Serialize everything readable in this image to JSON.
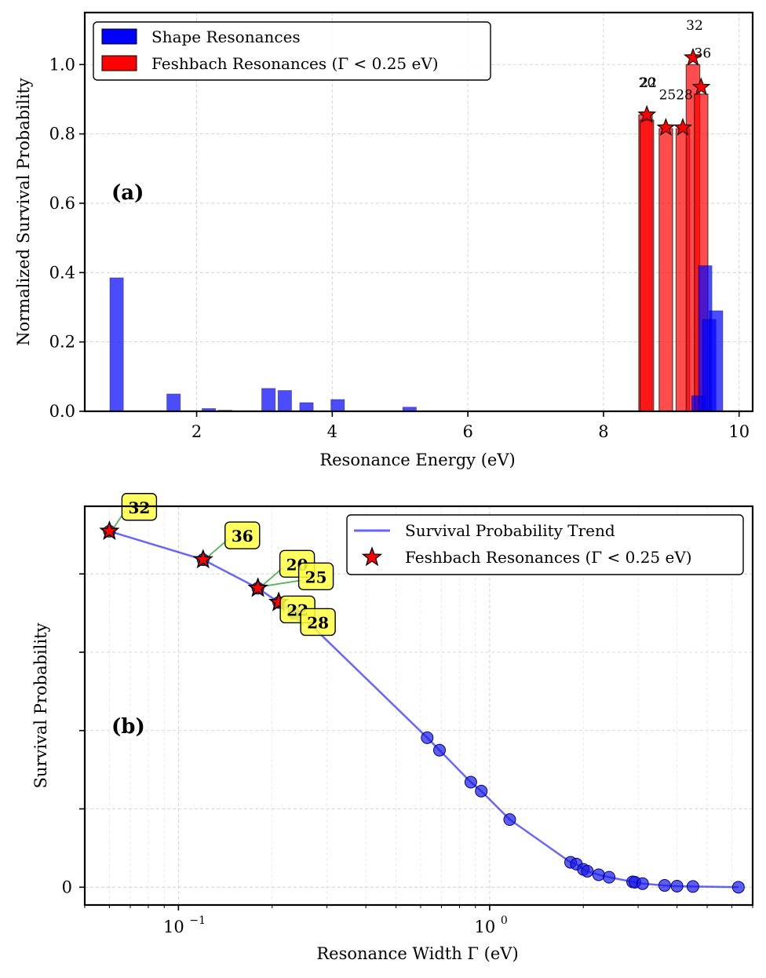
{
  "chart_data": [
    {
      "type": "bar",
      "panel_label": "(a)",
      "xlabel": "Resonance Energy (eV)",
      "ylabel": "Normalized Survival Probability",
      "xlim": [
        0.35,
        10.2
      ],
      "ylim": [
        0,
        1.15
      ],
      "xticks": [
        2,
        4,
        6,
        8,
        10
      ],
      "yticks": [
        0.0,
        0.2,
        0.4,
        0.6,
        0.8,
        1.0
      ],
      "xtick_labels": [
        "2",
        "4",
        "6",
        "8",
        "10"
      ],
      "ytick_labels": [
        "0.0",
        "0.2",
        "0.4",
        "0.6",
        "0.8",
        "1.0"
      ],
      "grid": true,
      "legend_position": "top-left",
      "legend": [
        "Shape Resonances",
        "Feshbach Resonances (Γ < 0.25 eV)"
      ],
      "colors": {
        "shape": "#0000ff",
        "feshbach": "#ff0000",
        "star": "#ff0000"
      },
      "bar_width": 0.2,
      "shape_bars": [
        {
          "x": 0.82,
          "value": 0.385
        },
        {
          "x": 1.66,
          "value": 0.05
        },
        {
          "x": 2.18,
          "value": 0.008
        },
        {
          "x": 2.42,
          "value": 0.003
        },
        {
          "x": 3.06,
          "value": 0.066
        },
        {
          "x": 3.3,
          "value": 0.06
        },
        {
          "x": 3.62,
          "value": 0.025
        },
        {
          "x": 4.08,
          "value": 0.034
        },
        {
          "x": 5.14,
          "value": 0.012
        },
        {
          "x": 9.4,
          "value": 0.045
        },
        {
          "x": 9.5,
          "value": 0.42
        },
        {
          "x": 9.56,
          "value": 0.265
        },
        {
          "x": 9.66,
          "value": 0.29
        }
      ],
      "feshbach_bars": [
        {
          "x": 8.62,
          "value": 0.855,
          "id": "20",
          "label_y": 0.935
        },
        {
          "x": 8.64,
          "value": 0.84,
          "id": "22",
          "label_y": 0.935
        },
        {
          "x": 8.92,
          "value": 0.815,
          "id": "25",
          "label_y": 0.9
        },
        {
          "x": 9.17,
          "value": 0.815,
          "id": "28",
          "label_y": 0.9
        },
        {
          "x": 9.32,
          "value": 1.0,
          "id": "32",
          "label_y": 1.1
        },
        {
          "x": 9.44,
          "value": 0.915,
          "id": "36",
          "label_y": 1.02
        }
      ],
      "stars": [
        {
          "x": 8.64,
          "y": 0.855
        },
        {
          "x": 8.92,
          "y": 0.818
        },
        {
          "x": 9.17,
          "y": 0.818
        },
        {
          "x": 9.32,
          "y": 1.02
        },
        {
          "x": 9.44,
          "y": 0.935
        }
      ]
    },
    {
      "type": "line",
      "panel_label": "(b)",
      "xscale": "log",
      "xlabel": "Resonance Width Γ (eV)",
      "ylabel": "Survival Probability",
      "xlim": [
        0.05,
        7.0
      ],
      "ylim": [
        -0.05,
        1.07
      ],
      "xtick_labels": [
        {
          "value": 0.1,
          "base": "10",
          "exp": "−1"
        },
        {
          "value": 1,
          "base": "10",
          "exp": "0"
        }
      ],
      "ytick_labels": [
        {
          "value": 0,
          "label": "0"
        }
      ],
      "ytick_positions": [
        0,
        0.22,
        0.44,
        0.66,
        0.88
      ],
      "grid": true,
      "legend_position": "top-right",
      "legend": [
        "Survival Probability Trend",
        "Feshbach Resonances (Γ < 0.25 eV)"
      ],
      "colors": {
        "line": "#0000ff",
        "point": "#1a1ae6",
        "star": "#ff0000",
        "badge": "#ffff44",
        "arrow": "#2ca02c"
      },
      "series": [
        {
          "name": "Survival Probability Trend",
          "x": [
            0.06,
            0.12,
            0.18,
            0.21,
            0.235,
            0.25,
            0.63,
            0.69,
            0.87,
            0.94,
            1.16,
            1.82,
            1.9,
            2.0,
            2.06,
            2.24,
            2.42,
            2.88,
            2.93,
            3.1,
            3.65,
            4.0,
            4.5,
            6.3
          ],
          "y": [
            1.0,
            0.92,
            0.84,
            0.8,
            0.77,
            0.76,
            0.42,
            0.385,
            0.295,
            0.27,
            0.19,
            0.07,
            0.065,
            0.05,
            0.045,
            0.035,
            0.028,
            0.015,
            0.014,
            0.01,
            0.005,
            0.003,
            0.002,
            0.0
          ]
        }
      ],
      "feshbach_points": [
        {
          "id": "32",
          "x": 0.06,
          "y": 1.0
        },
        {
          "id": "36",
          "x": 0.12,
          "y": 0.92
        },
        {
          "id": "20",
          "x": 0.18,
          "y": 0.84
        },
        {
          "id": "25",
          "x": 0.18,
          "y": 0.84
        },
        {
          "id": "22",
          "x": 0.21,
          "y": 0.8
        },
        {
          "id": "28",
          "x": 0.21,
          "y": 0.8
        }
      ]
    }
  ]
}
